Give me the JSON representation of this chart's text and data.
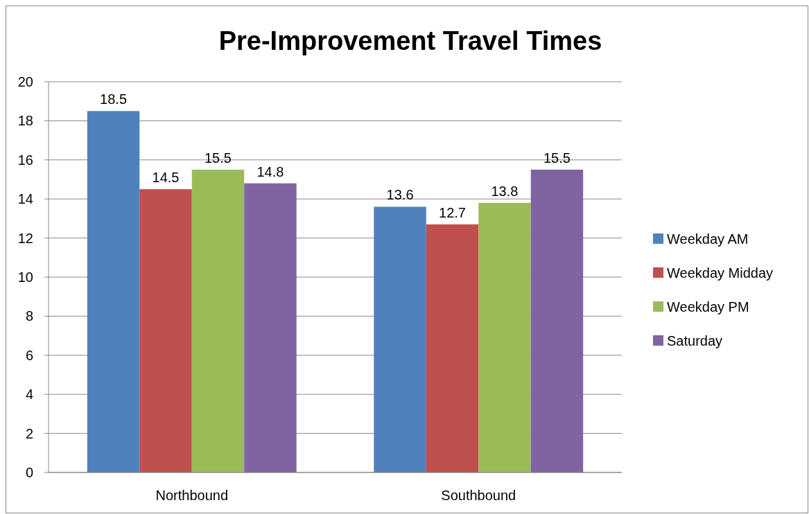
{
  "chart_data": {
    "type": "bar",
    "title": "Pre-Improvement Travel Times",
    "categories": [
      "Northbound",
      "Southbound"
    ],
    "series": [
      {
        "name": "Weekday AM",
        "color": "#4f81bd",
        "values": [
          18.5,
          13.6
        ]
      },
      {
        "name": "Weekday Midday",
        "color": "#c0504d",
        "values": [
          14.5,
          12.7
        ]
      },
      {
        "name": "Weekday PM",
        "color": "#9bbb59",
        "values": [
          15.5,
          13.8
        ]
      },
      {
        "name": "Saturday",
        "color": "#8064a2",
        "values": [
          14.8,
          15.5
        ]
      }
    ],
    "ylim": [
      0,
      20
    ],
    "yticks": [
      0,
      2,
      4,
      6,
      8,
      10,
      12,
      14,
      16,
      18,
      20
    ],
    "grid": "y",
    "legend": "right",
    "data_labels": true
  }
}
